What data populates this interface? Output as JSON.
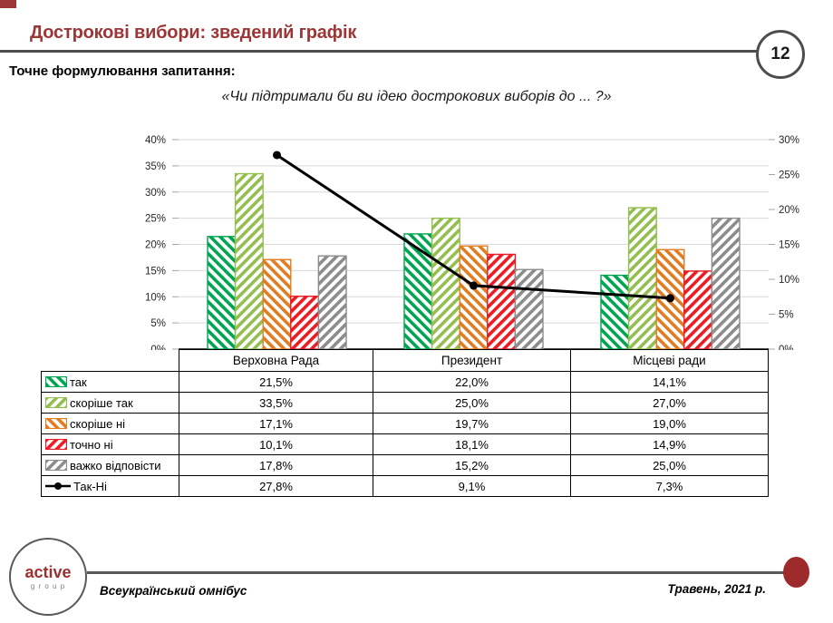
{
  "slide": {
    "title": "Дострокові вибори: зведений графік",
    "page_number": "12",
    "question_label": "Точне формулювання запитання:",
    "question_quote": "«Чи підтримали би ви ідею дострокових виборів до ... ?»",
    "accent_color": "#9c3636"
  },
  "chart_data": {
    "type": "bar",
    "title": "",
    "categories": [
      "Верховна Рада",
      "Президент",
      "Місцеві ради"
    ],
    "series": [
      {
        "name": "так",
        "values": [
          21.5,
          22.0,
          14.1
        ],
        "color": "#00A551",
        "hatch": "\\"
      },
      {
        "name": "скоріше так",
        "values": [
          33.5,
          25.0,
          27.0
        ],
        "color": "#94BE4F",
        "hatch": "/"
      },
      {
        "name": "скоріше ні",
        "values": [
          17.1,
          19.7,
          19.0
        ],
        "color": "#E07C22",
        "hatch": "\\"
      },
      {
        "name": "точно ні",
        "values": [
          10.1,
          18.1,
          14.9
        ],
        "color": "#EC1B24",
        "hatch": "/"
      },
      {
        "name": "важко відповісти",
        "values": [
          17.8,
          15.2,
          25.0
        ],
        "color": "#8C8C8C",
        "hatch": "/"
      }
    ],
    "line_series": {
      "name": "Так-Ні",
      "values": [
        27.8,
        9.1,
        7.3
      ],
      "color": "#000000",
      "axis": "right"
    },
    "left_axis": {
      "min": 0,
      "max": 40,
      "step": 5,
      "tick_labels": [
        "0%",
        "5%",
        "10%",
        "15%",
        "20%",
        "25%",
        "30%",
        "35%",
        "40%"
      ]
    },
    "right_axis": {
      "min": 0,
      "max": 30,
      "step": 5,
      "tick_labels": [
        "0%",
        "5%",
        "10%",
        "15%",
        "20%",
        "25%",
        "30%"
      ]
    },
    "grid": true,
    "legend_position": "table-left"
  },
  "table": {
    "col_headers": [
      "Верховна Рада",
      "Президент",
      "Місцеві ради"
    ],
    "rows": [
      {
        "label": "так",
        "values": [
          "21,5%",
          "22,0%",
          "14,1%"
        ]
      },
      {
        "label": "скоріше так",
        "values": [
          "33,5%",
          "25,0%",
          "27,0%"
        ]
      },
      {
        "label": "скоріше ні",
        "values": [
          "17,1%",
          "19,7%",
          "19,0%"
        ]
      },
      {
        "label": "точно ні",
        "values": [
          "10,1%",
          "18,1%",
          "14,9%"
        ]
      },
      {
        "label": "важко відповісти",
        "values": [
          "17,8%",
          "15,2%",
          "25,0%"
        ]
      },
      {
        "label": "Так-Ні",
        "values": [
          "27,8%",
          "9,1%",
          "7,3%"
        ]
      }
    ]
  },
  "footer": {
    "logo_top": "active",
    "logo_bottom": "g r o u p",
    "left_text": "Всеукраїнський омнібус",
    "right_text": "Травень, 2021 р."
  }
}
